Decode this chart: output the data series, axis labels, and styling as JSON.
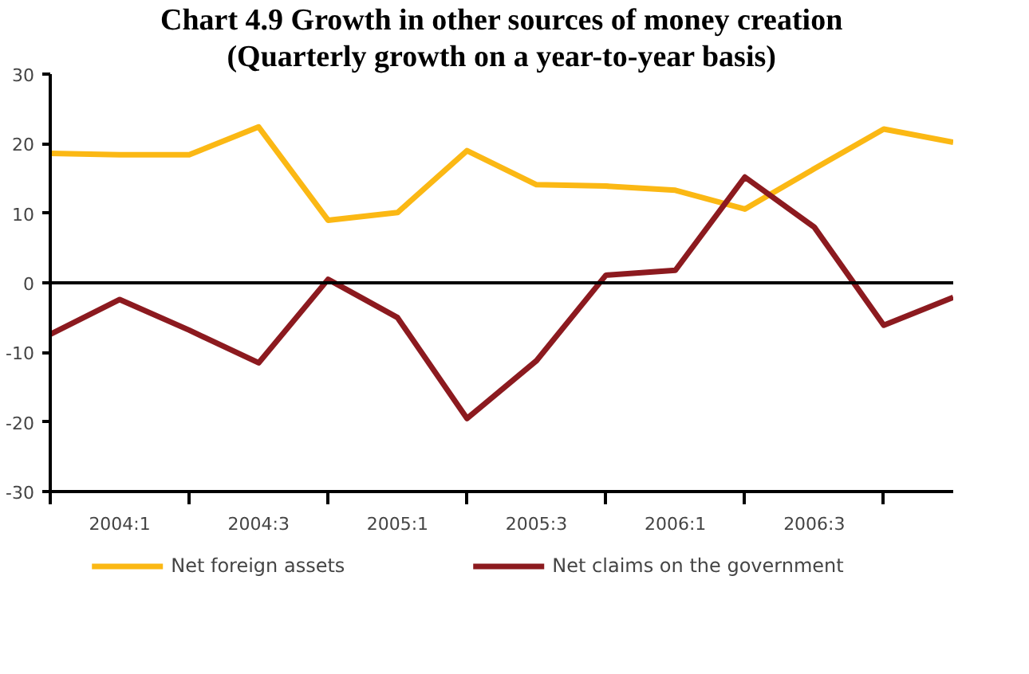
{
  "chart_data": {
    "type": "line",
    "title": "Chart 4.9 Growth in other sources of money creation",
    "subtitle": "(Quarterly growth on a year-to-year basis)",
    "categories": [
      null,
      "2004:1",
      null,
      "2004:3",
      null,
      "2005:1",
      null,
      "2005:3",
      null,
      "2006:1",
      null,
      "2006:3",
      null,
      null
    ],
    "series": [
      {
        "name": "Net foreign assets",
        "color": "#fbb814",
        "values": [
          18.6,
          18.4,
          18.4,
          22.4,
          9.0,
          10.1,
          19.0,
          14.1,
          13.9,
          13.3,
          10.6,
          16.4,
          22.1,
          20.2
        ]
      },
      {
        "name": "Net claims on the government",
        "color": "#8c1a1f",
        "values": [
          -7.4,
          -2.4,
          -6.8,
          -11.5,
          0.5,
          -5.0,
          -19.5,
          -11.2,
          1.1,
          1.8,
          15.2,
          8.0,
          -6.1,
          -2.1
        ]
      }
    ],
    "ylim": [
      -30,
      30
    ],
    "yticks": [
      -30,
      -20,
      -10,
      0,
      10,
      20,
      30
    ],
    "ref_lines": [
      {
        "axis": "y",
        "value": 0,
        "label": null,
        "color": "#000000"
      }
    ],
    "grid": false,
    "legend": "bottom",
    "marker": "none",
    "line_style": "solid"
  }
}
